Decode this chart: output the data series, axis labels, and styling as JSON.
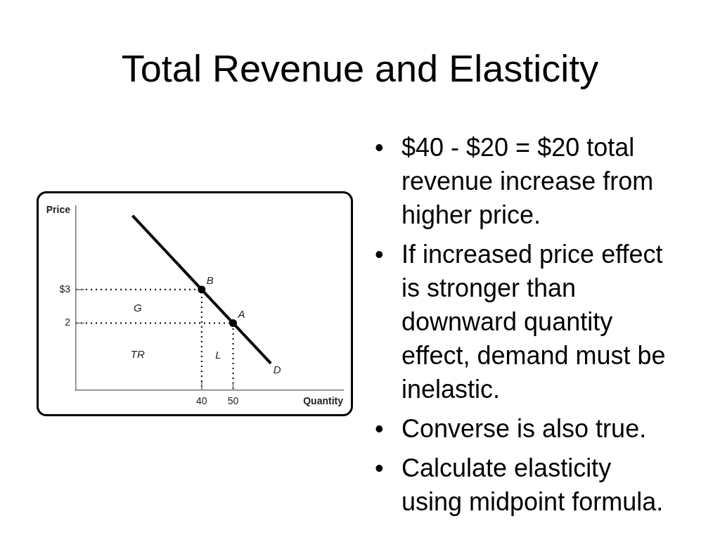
{
  "chart_data": {
    "type": "line",
    "title": "Total Revenue and Elasticity",
    "xlabel": "Quantity",
    "ylabel": "Price",
    "xlim": [
      0,
      85
    ],
    "ylim": [
      0,
      5.5
    ],
    "xticks": [
      40,
      50
    ],
    "yticks": [
      2,
      {
        "value": 3,
        "label": "$3"
      }
    ],
    "grid": false,
    "legend": false,
    "marker": "none",
    "line_style": "solid",
    "series": [
      {
        "color": "#000000",
        "x": [
          0,
          40,
          40
        ],
        "values": [
          3,
          3,
          0
        ],
        "line_style": "dotted"
      },
      {
        "color": "#000000",
        "x": [
          0,
          50,
          50
        ],
        "values": [
          2,
          2,
          0
        ],
        "line_style": "dotted"
      },
      {
        "color": "#000000",
        "x": [
          18,
          40,
          50,
          62
        ],
        "values": [
          5.2,
          3,
          2,
          0.8
        ]
      },
      {
        "type": "scatter",
        "color": "#000000",
        "x": [
          40,
          50
        ],
        "values": [
          3,
          2
        ],
        "marker": "circle"
      }
    ],
    "annotations": [
      {
        "text": "B",
        "x": 40,
        "y": 3
      },
      {
        "text": "A",
        "x": 50,
        "y": 2
      },
      {
        "text": "D",
        "x": 62,
        "y": 0.8
      },
      "G",
      "TR",
      "L",
      "• $40 - $20 = $20 total revenue increase from higher price.",
      "• If increased price effect is stronger than downward quantity effect, demand must be inelastic.",
      "• Converse is also true.",
      "• Calculate elasticity using midpoint formula."
    ]
  }
}
